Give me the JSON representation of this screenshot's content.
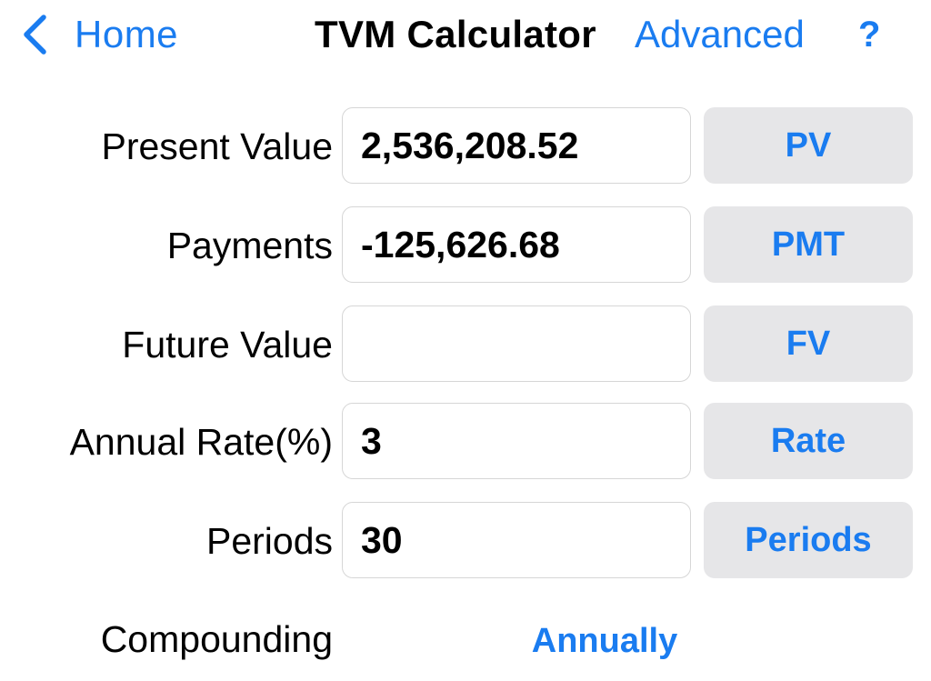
{
  "nav": {
    "back_label": "Home",
    "title": "TVM Calculator",
    "advanced_label": "Advanced",
    "help_label": "?"
  },
  "accent_color": "#1a7cf0",
  "rows": [
    {
      "label": "Present Value",
      "value": "2,536,208.52",
      "button": "PV"
    },
    {
      "label": "Payments",
      "value": "-125,626.68",
      "button": "PMT"
    },
    {
      "label": "Future Value",
      "value": "",
      "button": "FV"
    },
    {
      "label": "Annual Rate(%)",
      "value": "3",
      "button": "Rate"
    },
    {
      "label": "Periods",
      "value": "30",
      "button": "Periods"
    }
  ],
  "compounding": {
    "label": "Compounding",
    "value": "Annually"
  }
}
